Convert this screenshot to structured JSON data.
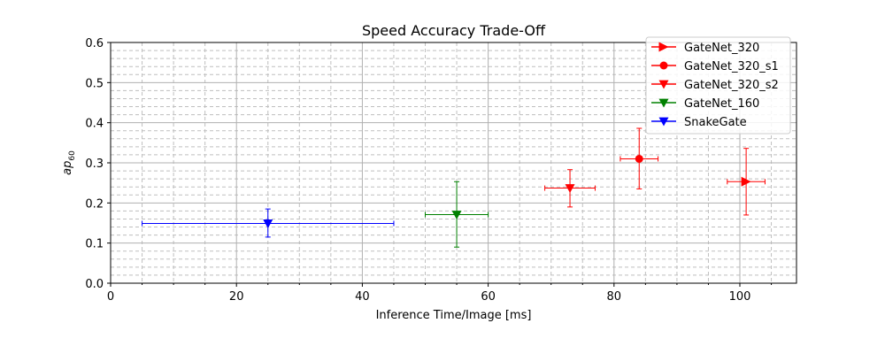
{
  "chart_data": {
    "type": "scatter",
    "title": "Speed Accuracy Trade-Off",
    "xlabel": "Inference Time/Image [ms]",
    "ylabel_base": "ap",
    "ylabel_sub": "60",
    "xlim": [
      0,
      109
    ],
    "ylim": [
      0,
      0.6
    ],
    "xticks": [
      "0",
      "20",
      "40",
      "60",
      "80",
      "100"
    ],
    "xtick_values": [
      0,
      20,
      40,
      60,
      80,
      100
    ],
    "yticks": [
      "0.0",
      "0.1",
      "0.2",
      "0.3",
      "0.4",
      "0.5",
      "0.6"
    ],
    "ytick_values": [
      0,
      0.1,
      0.2,
      0.3,
      0.4,
      0.5,
      0.6
    ],
    "grid": true,
    "legend_position": "top-right",
    "series": [
      {
        "name": "GateNet_320",
        "color": "#ff0000",
        "marker": "triangle-right",
        "x": 101,
        "y": 0.253,
        "xerr": [
          98,
          104
        ],
        "yerr": [
          0.17,
          0.336
        ]
      },
      {
        "name": "GateNet_320_s1",
        "color": "#ff0000",
        "marker": "circle",
        "x": 84,
        "y": 0.31,
        "xerr": [
          81,
          87
        ],
        "yerr": [
          0.235,
          0.386
        ]
      },
      {
        "name": "GateNet_320_s2",
        "color": "#ff0000",
        "marker": "triangle-down",
        "x": 73,
        "y": 0.237,
        "xerr": [
          69,
          77
        ],
        "yerr": [
          0.19,
          0.283
        ]
      },
      {
        "name": "GateNet_160",
        "color": "#008000",
        "marker": "triangle-down",
        "x": 55,
        "y": 0.171,
        "xerr": [
          50,
          60
        ],
        "yerr": [
          0.09,
          0.253
        ]
      },
      {
        "name": "SnakeGate",
        "color": "#0000ff",
        "marker": "triangle-down",
        "x": 25,
        "y": 0.149,
        "xerr": [
          5,
          45
        ],
        "yerr": [
          0.115,
          0.185
        ]
      }
    ]
  }
}
